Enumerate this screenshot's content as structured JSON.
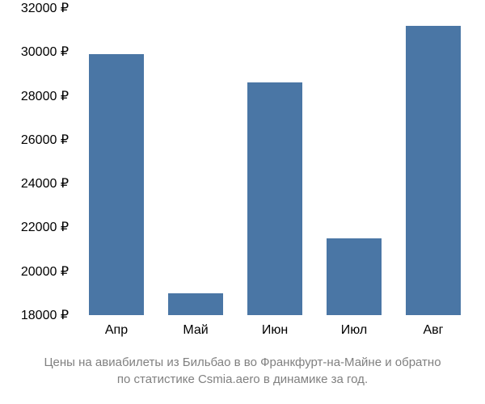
{
  "chart": {
    "type": "bar",
    "categories": [
      "Апр",
      "Май",
      "Июн",
      "Июл",
      "Авг"
    ],
    "values": [
      29900,
      19000,
      28600,
      21500,
      31200
    ],
    "bar_color": "#4a76a5",
    "bar_width_ratio": 0.7,
    "ylim": [
      18000,
      32000
    ],
    "ytick_step": 2000,
    "y_suffix": " ₽",
    "background_color": "#ffffff",
    "axis_fontsize": 16,
    "caption_fontsize": 15,
    "caption_color": "#808080"
  },
  "caption": {
    "line1": "Цены на авиабилеты из Бильбао в во Франкфурт-на-Майне и обратно",
    "line2": "по статистике Csmia.aero в динамике за год."
  }
}
